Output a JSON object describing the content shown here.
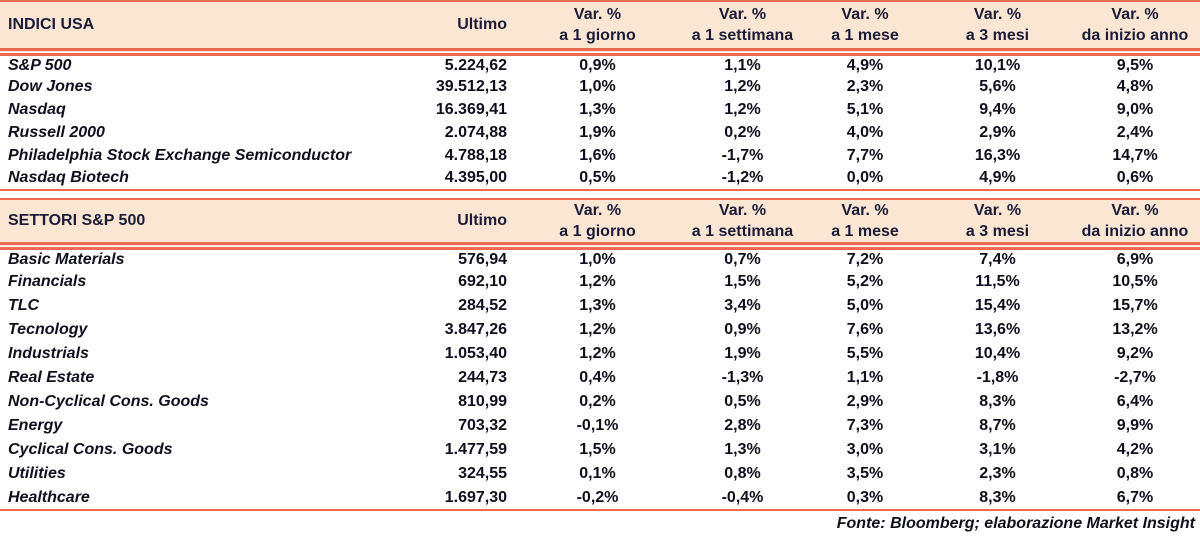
{
  "colors": {
    "accent_line": "#EC6A52",
    "header_background": "#FAE6D3",
    "heading_text": "#1B1B38",
    "body_text": "#0F0F1E"
  },
  "footer": {
    "source": "Fonte: Bloomberg; elaborazione Market Insight"
  },
  "chart_data": [
    {
      "type": "table",
      "title": "INDICI USA",
      "value_column": "Ultimo",
      "change_label": "Var. %",
      "change_periods": [
        "a 1 giorno",
        "a 1 settimana",
        "a 1 mese",
        "a 3 mesi",
        "da inizio anno"
      ],
      "rows": [
        {
          "label": "S&P 500",
          "ultimo": "5.224,62",
          "changes": [
            "0,9%",
            "1,1%",
            "4,9%",
            "10,1%",
            "9,5%"
          ]
        },
        {
          "label": "Dow Jones",
          "ultimo": "39.512,13",
          "changes": [
            "1,0%",
            "1,2%",
            "2,3%",
            "5,6%",
            "4,8%"
          ]
        },
        {
          "label": "Nasdaq",
          "ultimo": "16.369,41",
          "changes": [
            "1,3%",
            "1,2%",
            "5,1%",
            "9,4%",
            "9,0%"
          ]
        },
        {
          "label": "Russell 2000",
          "ultimo": "2.074,88",
          "changes": [
            "1,9%",
            "0,2%",
            "4,0%",
            "2,9%",
            "2,4%"
          ]
        },
        {
          "label": "Philadelphia Stock Exchange Semiconductor",
          "ultimo": "4.788,18",
          "changes": [
            "1,6%",
            "-1,7%",
            "7,7%",
            "16,3%",
            "14,7%"
          ]
        },
        {
          "label": "Nasdaq Biotech",
          "ultimo": "4.395,00",
          "changes": [
            "0,5%",
            "-1,2%",
            "0,0%",
            "4,9%",
            "0,6%"
          ]
        }
      ]
    },
    {
      "type": "table",
      "title": "SETTORI S&P 500",
      "value_column": "Ultimo",
      "change_label": "Var. %",
      "change_periods": [
        "a 1 giorno",
        "a 1 settimana",
        "a 1 mese",
        "a 3 mesi",
        "da inizio anno"
      ],
      "rows": [
        {
          "label": "Basic Materials",
          "ultimo": "576,94",
          "changes": [
            "1,0%",
            "0,7%",
            "7,2%",
            "7,4%",
            "6,9%"
          ]
        },
        {
          "label": "Financials",
          "ultimo": "692,10",
          "changes": [
            "1,2%",
            "1,5%",
            "5,2%",
            "11,5%",
            "10,5%"
          ]
        },
        {
          "label": "TLC",
          "ultimo": "284,52",
          "changes": [
            "1,3%",
            "3,4%",
            "5,0%",
            "15,4%",
            "15,7%"
          ]
        },
        {
          "label": "Tecnology",
          "ultimo": "3.847,26",
          "changes": [
            "1,2%",
            "0,9%",
            "7,6%",
            "13,6%",
            "13,2%"
          ]
        },
        {
          "label": "Industrials",
          "ultimo": "1.053,40",
          "changes": [
            "1,2%",
            "1,9%",
            "5,5%",
            "10,4%",
            "9,2%"
          ]
        },
        {
          "label": "Real Estate",
          "ultimo": "244,73",
          "changes": [
            "0,4%",
            "-1,3%",
            "1,1%",
            "-1,8%",
            "-2,7%"
          ]
        },
        {
          "label": "Non-Cyclical Cons. Goods",
          "ultimo": "810,99",
          "changes": [
            "0,2%",
            "0,5%",
            "2,9%",
            "8,3%",
            "6,4%"
          ]
        },
        {
          "label": "Energy",
          "ultimo": "703,32",
          "changes": [
            "-0,1%",
            "2,8%",
            "7,3%",
            "8,7%",
            "9,9%"
          ]
        },
        {
          "label": "Cyclical Cons. Goods",
          "ultimo": "1.477,59",
          "changes": [
            "1,5%",
            "1,3%",
            "3,0%",
            "3,1%",
            "4,2%"
          ]
        },
        {
          "label": "Utilities",
          "ultimo": "324,55",
          "changes": [
            "0,1%",
            "0,8%",
            "3,5%",
            "2,3%",
            "0,8%"
          ]
        },
        {
          "label": "Healthcare",
          "ultimo": "1.697,30",
          "changes": [
            "-0,2%",
            "-0,4%",
            "0,3%",
            "8,3%",
            "6,7%"
          ]
        }
      ]
    }
  ]
}
